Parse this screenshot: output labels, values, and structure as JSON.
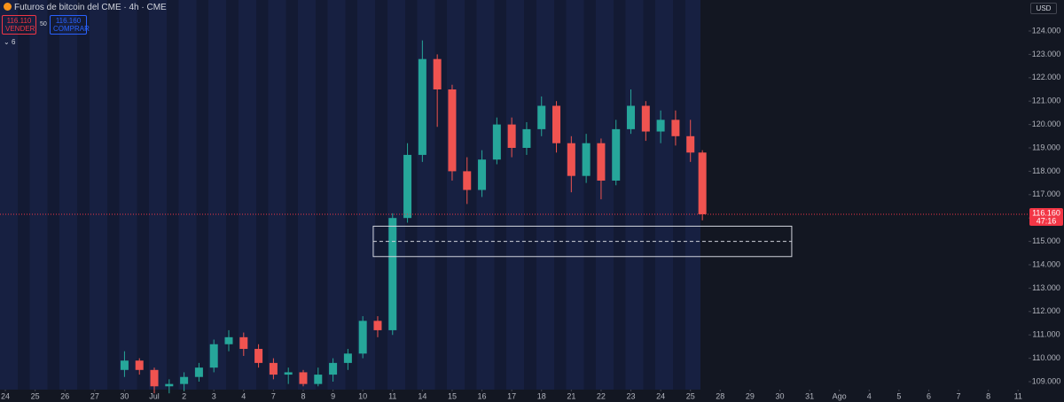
{
  "header": {
    "title": "Futuros de bitcoin del CME · 4h · CME",
    "sell_price": "116.110",
    "sell": "VENDER",
    "spread": "50",
    "buy_price": "116.160",
    "buy": "COMPRAR",
    "indicators": "6",
    "currency": "USD"
  },
  "chart_data": {
    "type": "candlestick",
    "x": [
      4,
      4.5,
      5,
      5.5,
      6,
      6.5,
      7,
      7.5,
      8,
      8.5,
      9,
      9.5,
      10,
      10.5,
      11,
      11.5,
      12,
      12.5,
      13,
      13.5,
      14,
      14.5,
      15,
      15.5,
      16,
      16.5,
      17,
      17.5,
      18,
      18.5,
      19,
      19.5,
      20,
      20.5,
      21,
      21.5,
      22,
      22.5,
      23,
      23.4
    ],
    "open": [
      109500,
      109900,
      109500,
      108800,
      108900,
      109200,
      109600,
      110600,
      110900,
      110400,
      109800,
      109300,
      109400,
      108900,
      109300,
      109800,
      110200,
      111600,
      111200,
      116000,
      118700,
      122800,
      121500,
      118000,
      117200,
      118500,
      120000,
      119000,
      119800,
      120800,
      119200,
      117800,
      119200,
      117600,
      119800,
      120800,
      119700,
      120200,
      119500,
      118800
    ],
    "high": [
      110300,
      110000,
      109600,
      109100,
      109400,
      109800,
      110800,
      111200,
      111100,
      110600,
      110000,
      109600,
      109500,
      109600,
      110000,
      110400,
      111800,
      111800,
      116200,
      119200,
      123600,
      123000,
      121700,
      118600,
      118900,
      120300,
      120300,
      120100,
      121200,
      121000,
      119500,
      119600,
      119400,
      120200,
      121500,
      121000,
      120600,
      120600,
      120200,
      118900
    ],
    "low": [
      109200,
      109300,
      108500,
      108500,
      108600,
      109000,
      109400,
      110300,
      110100,
      109600,
      109100,
      108900,
      108800,
      108800,
      109000,
      109500,
      110000,
      110900,
      111000,
      115800,
      118400,
      119900,
      117600,
      116600,
      116900,
      118300,
      118600,
      118700,
      119500,
      118800,
      117100,
      117500,
      116800,
      117400,
      119600,
      119300,
      119200,
      119100,
      118400,
      115900
    ],
    "close": [
      109900,
      109500,
      108800,
      108900,
      109200,
      109600,
      110600,
      110900,
      110400,
      109800,
      109300,
      109400,
      108900,
      109300,
      109800,
      110200,
      111600,
      111200,
      116000,
      118700,
      122800,
      121500,
      118000,
      117200,
      118500,
      120000,
      119000,
      119800,
      120800,
      119200,
      117800,
      119200,
      117600,
      119800,
      120800,
      119700,
      120200,
      119500,
      118800,
      116160
    ],
    "up_color": "#26a69a",
    "down_color": "#ef5350",
    "xlim": [
      -0.18,
      34.35
    ],
    "xticks": [
      {
        "value": 0,
        "label": "24"
      },
      {
        "value": 1,
        "label": "25"
      },
      {
        "value": 2,
        "label": "26"
      },
      {
        "value": 3,
        "label": "27"
      },
      {
        "value": 4,
        "label": "30"
      },
      {
        "value": 5,
        "label": "Jul"
      },
      {
        "value": 6,
        "label": "2"
      },
      {
        "value": 7,
        "label": "3"
      },
      {
        "value": 8,
        "label": "4"
      },
      {
        "value": 9,
        "label": "7"
      },
      {
        "value": 10,
        "label": "8"
      },
      {
        "value": 11,
        "label": "9"
      },
      {
        "value": 12,
        "label": "10"
      },
      {
        "value": 13,
        "label": "11"
      },
      {
        "value": 14,
        "label": "14"
      },
      {
        "value": 15,
        "label": "15"
      },
      {
        "value": 16,
        "label": "16"
      },
      {
        "value": 17,
        "label": "17"
      },
      {
        "value": 18,
        "label": "18"
      },
      {
        "value": 19,
        "label": "21"
      },
      {
        "value": 20,
        "label": "22"
      },
      {
        "value": 21,
        "label": "23"
      },
      {
        "value": 22,
        "label": "24"
      },
      {
        "value": 23,
        "label": "25"
      },
      {
        "value": 24,
        "label": "28"
      },
      {
        "value": 25,
        "label": "29"
      },
      {
        "value": 26,
        "label": "30"
      },
      {
        "value": 27,
        "label": "31"
      },
      {
        "value": 28,
        "label": "Ago"
      },
      {
        "value": 29,
        "label": "4"
      },
      {
        "value": 30,
        "label": "5"
      },
      {
        "value": 31,
        "label": "6"
      },
      {
        "value": 32,
        "label": "7"
      },
      {
        "value": 33,
        "label": "8"
      },
      {
        "value": 34,
        "label": "11"
      }
    ],
    "ylim": [
      108659,
      125326
    ],
    "yticks": [
      {
        "value": 109000,
        "label": "109.000"
      },
      {
        "value": 110000,
        "label": "110.000"
      },
      {
        "value": 111000,
        "label": "111.000"
      },
      {
        "value": 112000,
        "label": "112.000"
      },
      {
        "value": 113000,
        "label": "113.000"
      },
      {
        "value": 114000,
        "label": "114.000"
      },
      {
        "value": 115000,
        "label": "115.000"
      },
      {
        "value": 116000,
        "label": "116.000"
      },
      {
        "value": 117000,
        "label": "117.000"
      },
      {
        "value": 118000,
        "label": "118.000"
      },
      {
        "value": 119000,
        "label": "119.000"
      },
      {
        "value": 120000,
        "label": "120.000"
      },
      {
        "value": 121000,
        "label": "121.000"
      },
      {
        "value": 122000,
        "label": "122.000"
      },
      {
        "value": 123000,
        "label": "123.000"
      },
      {
        "value": 124000,
        "label": "124.000"
      }
    ],
    "last_price": {
      "value": 116160,
      "label": "116.160",
      "countdown": "47:16",
      "color": "#f23645"
    },
    "box": {
      "x": [
        12.35,
        26.4
      ],
      "y": [
        114350,
        115650
      ],
      "color": "#d1d4dc"
    }
  }
}
